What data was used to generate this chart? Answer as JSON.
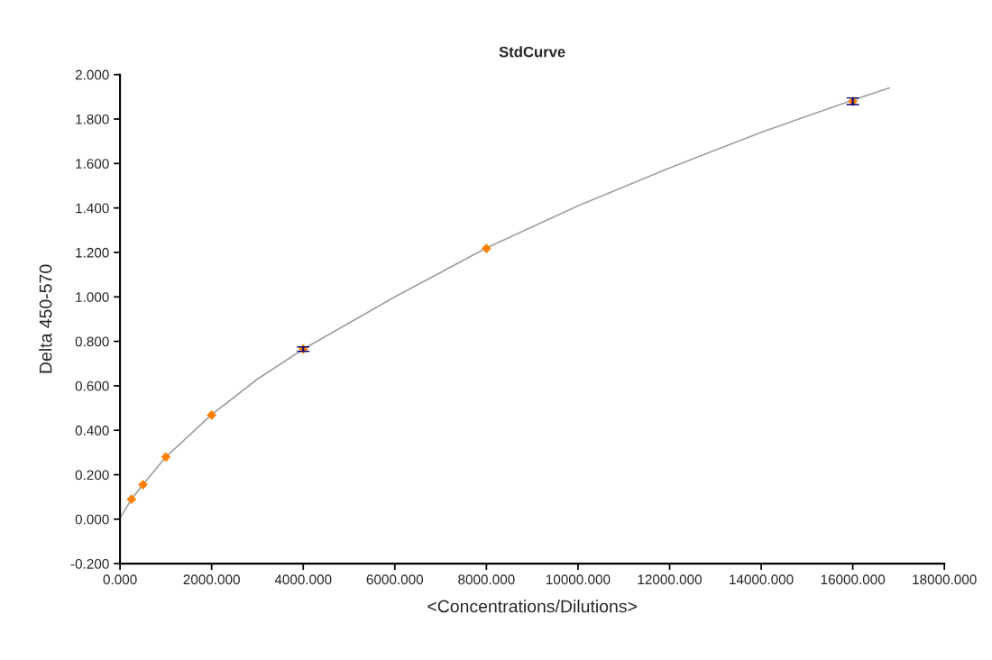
{
  "chart_data": {
    "type": "scatter",
    "title": "StdCurve",
    "xlabel": "<Concentrations/Dilutions>",
    "ylabel": "Delta 450-570",
    "xlim": [
      0,
      18000
    ],
    "xticks": [
      {
        "value": 0,
        "label": "0.000"
      },
      {
        "value": 2000,
        "label": "2000.000"
      },
      {
        "value": 4000,
        "label": "4000.000"
      },
      {
        "value": 6000,
        "label": "6000.000"
      },
      {
        "value": 8000,
        "label": "8000.000"
      },
      {
        "value": 10000,
        "label": "10000.000"
      },
      {
        "value": 12000,
        "label": "12000.000"
      },
      {
        "value": 14000,
        "label": "14000.000"
      },
      {
        "value": 16000,
        "label": "16000.000"
      },
      {
        "value": 18000,
        "label": "18000.000"
      }
    ],
    "ylim": [
      -0.2,
      2.0
    ],
    "yticks": [
      {
        "value": -0.2,
        "label": "-0.200"
      },
      {
        "value": 0,
        "label": "0.000"
      },
      {
        "value": 0.2,
        "label": "0.200"
      },
      {
        "value": 0.4,
        "label": "0.400"
      },
      {
        "value": 0.6,
        "label": "0.600"
      },
      {
        "value": 0.8,
        "label": "0.800"
      },
      {
        "value": 1.0,
        "label": "1.000"
      },
      {
        "value": 1.2,
        "label": "1.200"
      },
      {
        "value": 1.4,
        "label": "1.400"
      },
      {
        "value": 1.6,
        "label": "1.600"
      },
      {
        "value": 1.8,
        "label": "1.800"
      },
      {
        "value": 2.0,
        "label": "2.000"
      }
    ],
    "grid": false,
    "legend": false,
    "series": [
      {
        "type": "line",
        "color": "#a0a0a0",
        "marker": "none",
        "line_style": "solid",
        "x": [
          0,
          250,
          500,
          1000,
          2000,
          3000,
          4000,
          6000,
          8000,
          10000,
          12000,
          14000,
          16000,
          16800
        ],
        "values": [
          0.005,
          0.09,
          0.155,
          0.28,
          0.47,
          0.63,
          0.765,
          1.0,
          1.22,
          1.41,
          1.58,
          1.74,
          1.885,
          1.94
        ]
      },
      {
        "color": "#ff8000",
        "marker": "diamond",
        "x": [
          250,
          500,
          1000,
          2000,
          4000,
          8000,
          16000
        ],
        "values": [
          0.09,
          0.155,
          0.28,
          0.468,
          0.765,
          1.218,
          1.88
        ],
        "errors": [
          null,
          null,
          null,
          null,
          0.01,
          null,
          0.015
        ]
      }
    ]
  }
}
